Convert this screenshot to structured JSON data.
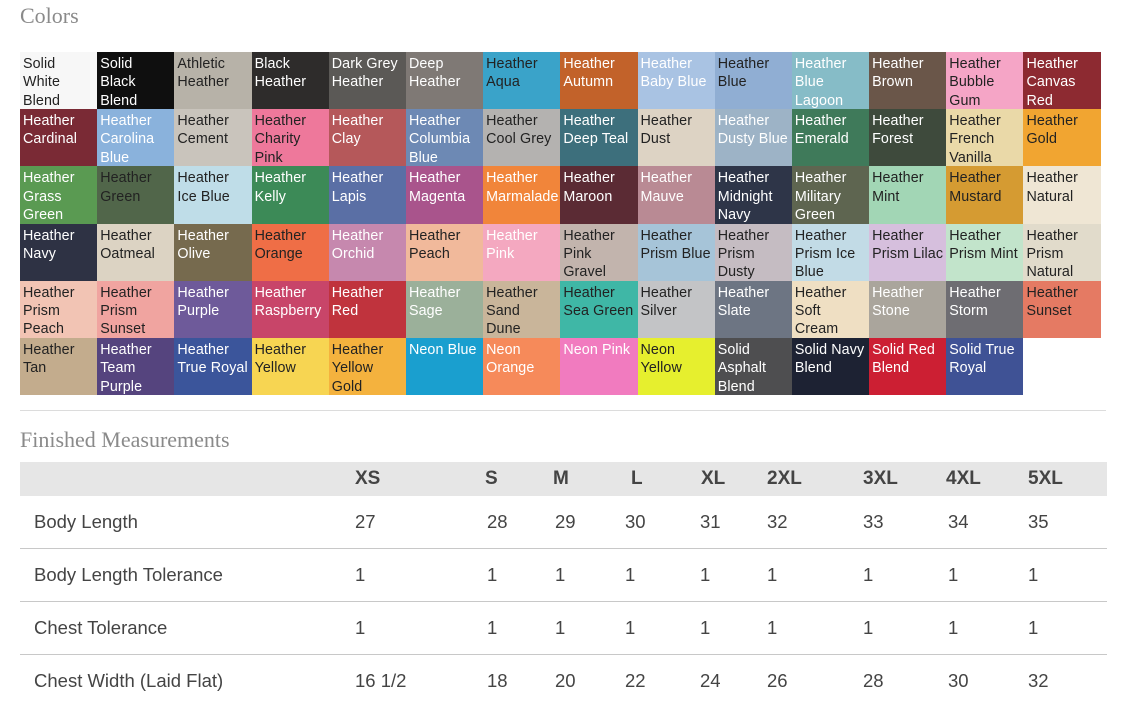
{
  "colors_section": {
    "title": "Colors",
    "swatches": [
      {
        "label": "Solid White Blend",
        "bg": "#f7f7f7",
        "text": "#222222"
      },
      {
        "label": "Solid Black Blend",
        "bg": "#0f0f0f",
        "text": "#ffffff"
      },
      {
        "label": "Athletic Heather",
        "bg": "#b7b2a8",
        "text": "#222222"
      },
      {
        "label": "Black Heather",
        "bg": "#2e2c2b",
        "text": "#ffffff"
      },
      {
        "label": "Dark Grey Heather",
        "bg": "#5b5956",
        "text": "#ffffff"
      },
      {
        "label": "Deep Heather",
        "bg": "#7f7975",
        "text": "#ffffff"
      },
      {
        "label": "Heather Aqua",
        "bg": "#3aa3c9",
        "text": "#222222"
      },
      {
        "label": "Heather Autumn",
        "bg": "#c2622a",
        "text": "#ffffff"
      },
      {
        "label": "Heather Baby Blue",
        "bg": "#a9c3e3",
        "text": "#ffffff"
      },
      {
        "label": "Heather Blue",
        "bg": "#90aed3",
        "text": "#222222"
      },
      {
        "label": "Heather Blue Lagoon",
        "bg": "#86bcc7",
        "text": "#ffffff"
      },
      {
        "label": "Heather Brown",
        "bg": "#6a5649",
        "text": "#ffffff"
      },
      {
        "label": "Heather Bubble Gum",
        "bg": "#f5a5c6",
        "text": "#222222"
      },
      {
        "label": "Heather Canvas Red",
        "bg": "#8d2a31",
        "text": "#ffffff"
      },
      {
        "label": "Heather Cardinal",
        "bg": "#7a2a35",
        "text": "#ffffff"
      },
      {
        "label": "Heather Carolina Blue",
        "bg": "#8ab2dc",
        "text": "#ffffff"
      },
      {
        "label": "Heather Cement",
        "bg": "#c9c4bc",
        "text": "#222222"
      },
      {
        "label": "Heather Charity Pink",
        "bg": "#ee789b",
        "text": "#222222"
      },
      {
        "label": "Heather Clay",
        "bg": "#b5585a",
        "text": "#ffffff"
      },
      {
        "label": "Heather Columbia Blue",
        "bg": "#6d89b4",
        "text": "#ffffff"
      },
      {
        "label": "Heather Cool Grey",
        "bg": "#b4b2b0",
        "text": "#222222"
      },
      {
        "label": "Heather Deep Teal",
        "bg": "#3d6f7c",
        "text": "#ffffff"
      },
      {
        "label": "Heather Dust",
        "bg": "#ddd3c4",
        "text": "#222222"
      },
      {
        "label": "Heather Dusty Blue",
        "bg": "#9db3c6",
        "text": "#ffffff"
      },
      {
        "label": "Heather Emerald",
        "bg": "#3f7a5a",
        "text": "#ffffff"
      },
      {
        "label": "Heather Forest",
        "bg": "#3e4a3c",
        "text": "#ffffff"
      },
      {
        "label": "Heather French Vanilla",
        "bg": "#ead9a8",
        "text": "#222222"
      },
      {
        "label": "Heather Gold",
        "bg": "#f1a531",
        "text": "#222222"
      },
      {
        "label": "Heather Grass Green",
        "bg": "#5a9a52",
        "text": "#ffffff"
      },
      {
        "label": "Heather Green",
        "bg": "#51664a",
        "text": "#222222"
      },
      {
        "label": "Heather Ice Blue",
        "bg": "#bfdde8",
        "text": "#222222"
      },
      {
        "label": "Heather Kelly",
        "bg": "#3c8a57",
        "text": "#ffffff"
      },
      {
        "label": "Heather Lapis",
        "bg": "#5a6fa5",
        "text": "#ffffff"
      },
      {
        "label": "Heather Magenta",
        "bg": "#a9548c",
        "text": "#ffffff"
      },
      {
        "label": "Heather Marmalade",
        "bg": "#f1853a",
        "text": "#ffffff"
      },
      {
        "label": "Heather Maroon",
        "bg": "#5b2b34",
        "text": "#ffffff"
      },
      {
        "label": "Heather Mauve",
        "bg": "#b98a94",
        "text": "#ffffff"
      },
      {
        "label": "Heather Midnight Navy",
        "bg": "#2e3548",
        "text": "#ffffff"
      },
      {
        "label": "Heather Military Green",
        "bg": "#5e6550",
        "text": "#ffffff"
      },
      {
        "label": "Heather Mint",
        "bg": "#a2d6b5",
        "text": "#222222"
      },
      {
        "label": "Heather Mustard",
        "bg": "#d59b32",
        "text": "#222222"
      },
      {
        "label": "Heather Natural",
        "bg": "#efe6d4",
        "text": "#222222"
      },
      {
        "label": "Heather Navy",
        "bg": "#2e3244",
        "text": "#ffffff"
      },
      {
        "label": "Heather Oatmeal",
        "bg": "#dcd3c3",
        "text": "#222222"
      },
      {
        "label": "Heather Olive",
        "bg": "#766a4e",
        "text": "#ffffff"
      },
      {
        "label": "Heather Orange",
        "bg": "#ef6e46",
        "text": "#222222"
      },
      {
        "label": "Heather Orchid",
        "bg": "#c688ae",
        "text": "#ffffff"
      },
      {
        "label": "Heather Peach",
        "bg": "#f1b99b",
        "text": "#222222"
      },
      {
        "label": "Heather Pink",
        "bg": "#f4a8c0",
        "text": "#ffffff"
      },
      {
        "label": "Heather Pink Gravel",
        "bg": "#c2b4ad",
        "text": "#222222"
      },
      {
        "label": "Heather Prism Blue",
        "bg": "#a6c4d8",
        "text": "#222222"
      },
      {
        "label": "Heather Prism Dusty",
        "bg": "#c5bcc2",
        "text": "#222222"
      },
      {
        "label": "Heather Prism Ice Blue",
        "bg": "#c2dbe6",
        "text": "#222222"
      },
      {
        "label": "Heather Prism Lilac",
        "bg": "#d6bfdd",
        "text": "#222222"
      },
      {
        "label": "Heather Prism Mint",
        "bg": "#c2e4cb",
        "text": "#222222"
      },
      {
        "label": "Heather Prism Natural",
        "bg": "#e1dbcb",
        "text": "#222222"
      },
      {
        "label": "Heather Prism Peach",
        "bg": "#f2c4b4",
        "text": "#222222"
      },
      {
        "label": "Heather Prism Sunset",
        "bg": "#f0a4a0",
        "text": "#222222"
      },
      {
        "label": "Heather Purple",
        "bg": "#6e5a9a",
        "text": "#ffffff"
      },
      {
        "label": "Heather Raspberry",
        "bg": "#c84569",
        "text": "#ffffff"
      },
      {
        "label": "Heather Red",
        "bg": "#c0333d",
        "text": "#ffffff"
      },
      {
        "label": "Heather Sage",
        "bg": "#9bb09a",
        "text": "#ffffff"
      },
      {
        "label": "Heather Sand Dune",
        "bg": "#c9b59a",
        "text": "#222222"
      },
      {
        "label": "Heather Sea Green",
        "bg": "#3fb7a6",
        "text": "#222222"
      },
      {
        "label": "Heather Silver",
        "bg": "#c3c4c6",
        "text": "#222222"
      },
      {
        "label": "Heather Slate",
        "bg": "#6d7583",
        "text": "#ffffff"
      },
      {
        "label": "Heather Soft Cream",
        "bg": "#efdfc3",
        "text": "#222222"
      },
      {
        "label": "Heather Stone",
        "bg": "#aaa59c",
        "text": "#ffffff"
      },
      {
        "label": "Heather Storm",
        "bg": "#6e6d72",
        "text": "#ffffff"
      },
      {
        "label": "Heather Sunset",
        "bg": "#e57a63",
        "text": "#222222"
      },
      {
        "label": "Heather Tan",
        "bg": "#c3ac8d",
        "text": "#222222"
      },
      {
        "label": "Heather Team Purple",
        "bg": "#55447e",
        "text": "#ffffff"
      },
      {
        "label": "Heather True Royal",
        "bg": "#3b559b",
        "text": "#ffffff"
      },
      {
        "label": "Heather Yellow",
        "bg": "#f7d552",
        "text": "#222222"
      },
      {
        "label": "Heather Yellow Gold",
        "bg": "#f4b23e",
        "text": "#222222"
      },
      {
        "label": "Neon Blue",
        "bg": "#1a9fcf",
        "text": "#ffffff"
      },
      {
        "label": "Neon Orange",
        "bg": "#f68a5a",
        "text": "#ffffff"
      },
      {
        "label": "Neon Pink",
        "bg": "#f17bbf",
        "text": "#ffffff"
      },
      {
        "label": "Neon Yellow",
        "bg": "#e6ef2e",
        "text": "#222222"
      },
      {
        "label": "Solid Asphalt Blend",
        "bg": "#4e4e50",
        "text": "#ffffff"
      },
      {
        "label": "Solid Navy Blend",
        "bg": "#1d2233",
        "text": "#ffffff"
      },
      {
        "label": "Solid Red Blend",
        "bg": "#cc1f33",
        "text": "#ffffff"
      },
      {
        "label": "Solid True Royal",
        "bg": "#3f5295",
        "text": "#ffffff"
      }
    ]
  },
  "measurements_section": {
    "title": "Finished Measurements",
    "headers": [
      "",
      "XS",
      "S",
      "M",
      "L",
      "XL",
      "2XL",
      "3XL",
      "4XL",
      "5XL"
    ],
    "rows": [
      {
        "label": "Body Length",
        "values": [
          "27",
          "28",
          "29",
          "30",
          "31",
          "32",
          "33",
          "34",
          "35"
        ]
      },
      {
        "label": "Body Length Tolerance",
        "values": [
          "1",
          "1",
          "1",
          "1",
          "1",
          "1",
          "1",
          "1",
          "1"
        ]
      },
      {
        "label": "Chest Tolerance",
        "values": [
          "1",
          "1",
          "1",
          "1",
          "1",
          "1",
          "1",
          "1",
          "1"
        ]
      },
      {
        "label": "Chest Width (Laid Flat)",
        "values": [
          "16 1/2",
          "18",
          "20",
          "22",
          "24",
          "26",
          "28",
          "30",
          "32"
        ]
      }
    ]
  }
}
